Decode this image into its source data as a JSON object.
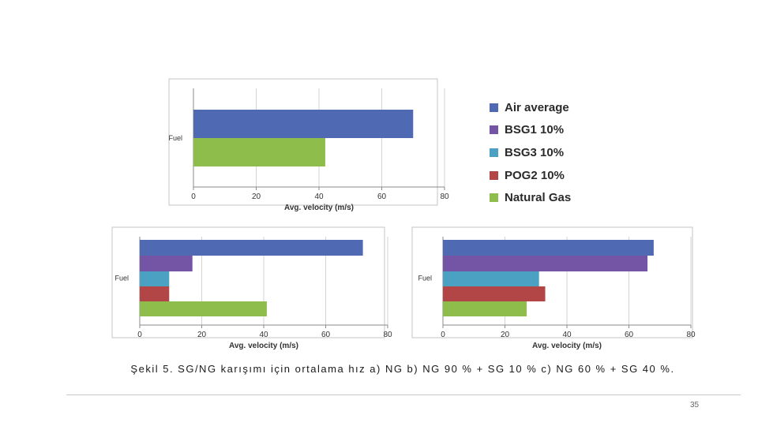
{
  "colors": {
    "air_average": "#4f69b2",
    "bsg1": "#7454a5",
    "bsg3": "#4aa1c2",
    "pog2": "#b24646",
    "natural_gas": "#8fbd4b"
  },
  "legend": {
    "items": [
      {
        "label": "Air average",
        "color_key": "air_average"
      },
      {
        "label": "BSG1 10%",
        "color_key": "bsg1"
      },
      {
        "label": "BSG3 10%",
        "color_key": "bsg3"
      },
      {
        "label": "POG2 10%",
        "color_key": "pog2"
      },
      {
        "label": "Natural Gas",
        "color_key": "natural_gas"
      }
    ]
  },
  "chart_data": [
    {
      "type": "bar",
      "orientation": "horizontal",
      "panel": "a",
      "category": "Fuel",
      "xlabel": "Avg. velocity (m/s)",
      "xlim": [
        0,
        80
      ],
      "xticks": [
        0,
        20,
        40,
        60,
        80
      ],
      "series": [
        {
          "name": "Air average",
          "value": 70
        },
        {
          "name": "Natural Gas",
          "value": 42
        }
      ]
    },
    {
      "type": "bar",
      "orientation": "horizontal",
      "panel": "b",
      "category": "Fuel",
      "xlabel": "Avg. velocity (m/s)",
      "xlim": [
        0,
        80
      ],
      "xticks": [
        0,
        20,
        40,
        60,
        80
      ],
      "series": [
        {
          "name": "Air average",
          "value": 72
        },
        {
          "name": "BSG1 10%",
          "value": 17
        },
        {
          "name": "BSG3 10%",
          "value": 9.5
        },
        {
          "name": "POG2 10%",
          "value": 9.5
        },
        {
          "name": "Natural Gas",
          "value": 41
        }
      ]
    },
    {
      "type": "bar",
      "orientation": "horizontal",
      "panel": "c",
      "category": "Fuel",
      "xlabel": "Avg. velocity (m/s)",
      "xlim": [
        0,
        80
      ],
      "xticks": [
        0,
        20,
        40,
        60,
        80
      ],
      "series": [
        {
          "name": "Air average",
          "value": 68
        },
        {
          "name": "BSG1 10%",
          "value": 66
        },
        {
          "name": "BSG3 10%",
          "value": 31
        },
        {
          "name": "POG2 10%",
          "value": 33
        },
        {
          "name": "Natural Gas",
          "value": 27
        }
      ]
    }
  ],
  "caption": "Şekil 5. SG/NG karışımı için ortalama hız a) NG b) NG 90 % + SG 10 % c) NG 60 % + SG 40 %.",
  "page_number": "35"
}
